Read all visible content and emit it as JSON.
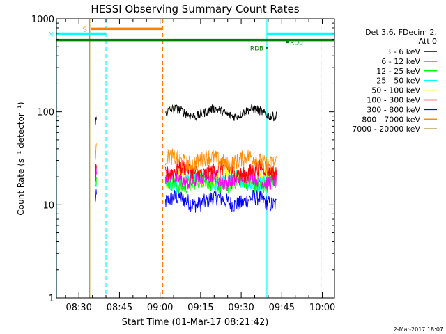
{
  "chart_data": {
    "type": "line",
    "title": "HESSI Observing Summary Count Rates",
    "ylabel": "Count Rate (s⁻¹ detector⁻¹)",
    "xlabel": "Start Time (01-Mar-17 08:21:42)",
    "y_scale": "log",
    "ylim": [
      1,
      1000
    ],
    "y_ticks": [
      {
        "value": 1,
        "label": "1"
      },
      {
        "value": 10,
        "label": "10"
      },
      {
        "value": 100,
        "label": "100"
      },
      {
        "value": 1000,
        "label": "1000"
      }
    ],
    "xlim": [
      "08:21:42",
      "10:04:30"
    ],
    "x_ticks": [
      "08:30",
      "08:45",
      "09:00",
      "09:15",
      "09:30",
      "09:45",
      "10:00"
    ],
    "grid": false,
    "legend_header": [
      "Det 3,6, FDecim 2,",
      "Att 0"
    ],
    "legend_position": "right",
    "series": [
      {
        "name": "3 - 6 keV",
        "color": "#000000",
        "segments": [
          {
            "start": "08:36:00",
            "end": "08:36:30",
            "level": 80
          },
          {
            "start": "09:02:00",
            "end": "09:43:00",
            "level": 98
          }
        ]
      },
      {
        "name": "6 - 12 keV",
        "color": "#ff00ff",
        "segments": [
          {
            "start": "08:36:00",
            "end": "08:36:30",
            "level": 20
          },
          {
            "start": "09:02:00",
            "end": "09:43:00",
            "level": 19
          }
        ]
      },
      {
        "name": "12 - 25 keV",
        "color": "#00ff00",
        "segments": [
          {
            "start": "08:36:00",
            "end": "08:36:30",
            "level": 18
          },
          {
            "start": "09:02:00",
            "end": "09:43:00",
            "level": 17
          }
        ]
      },
      {
        "name": "25 - 50 keV",
        "color": "#00ffff",
        "segments": [
          {
            "start": "08:36:00",
            "end": "08:36:30",
            "level": 19
          },
          {
            "start": "09:02:00",
            "end": "09:43:00",
            "level": 18
          }
        ]
      },
      {
        "name": "50 - 100 keV",
        "color": "#ffff00",
        "segments": [
          {
            "start": "08:36:00",
            "end": "08:36:30",
            "level": 21
          },
          {
            "start": "09:02:00",
            "end": "09:43:00",
            "level": 20
          }
        ]
      },
      {
        "name": "100 - 300 keV",
        "color": "#ff0000",
        "segments": [
          {
            "start": "08:36:00",
            "end": "08:36:30",
            "level": 24
          },
          {
            "start": "09:02:00",
            "end": "09:43:00",
            "level": 23
          }
        ]
      },
      {
        "name": "300 - 800 keV",
        "color": "#0000ff",
        "segments": [
          {
            "start": "08:36:00",
            "end": "08:36:30",
            "level": 12
          },
          {
            "start": "09:02:00",
            "end": "09:43:00",
            "level": 11
          }
        ]
      },
      {
        "name": "800 - 7000 keV",
        "color": "#ff8c00",
        "segments": [
          {
            "start": "08:36:00",
            "end": "08:36:30",
            "level": 35
          },
          {
            "start": "09:02:00",
            "end": "09:43:00",
            "level": 30
          }
        ]
      },
      {
        "name": "7000 - 20000 keV",
        "color": "#a07800",
        "segments": []
      }
    ],
    "flag_bars": [
      {
        "label": "S",
        "color": "#ff7f00",
        "start": "08:34:30",
        "end": "09:01:00",
        "level": 780
      },
      {
        "label": "N",
        "color": "#00ffff",
        "start": "08:21:42",
        "end": "08:40:00",
        "level": 690
      },
      {
        "label": "",
        "color": "#00ffff",
        "start": "09:39:30",
        "end": "10:04:30",
        "level": 690
      },
      {
        "label": "",
        "color": "#008000",
        "start": "08:21:42",
        "end": "10:04:30",
        "level": 590
      }
    ],
    "flag_labels": [
      {
        "text": "RD0",
        "color": "#008000",
        "level": 560,
        "at": "09:48:00"
      },
      {
        "text": "RDB",
        "color": "#008000",
        "level": 490,
        "at": "09:40:30"
      }
    ],
    "vlines": [
      {
        "time": "08:21:42",
        "color": "#00ffff",
        "style": "solid"
      },
      {
        "time": "08:34:00",
        "color": "#c09000",
        "style": "solid"
      },
      {
        "time": "08:40:00",
        "color": "#00ffff",
        "style": "dashed"
      },
      {
        "time": "09:01:00",
        "color": "#ff7f00",
        "style": "dashed"
      },
      {
        "time": "09:39:30",
        "color": "#00ffff",
        "style": "solid"
      },
      {
        "time": "09:59:30",
        "color": "#00ffff",
        "style": "dashed"
      }
    ]
  },
  "footer_date": "2-Mar-2017 18:07"
}
